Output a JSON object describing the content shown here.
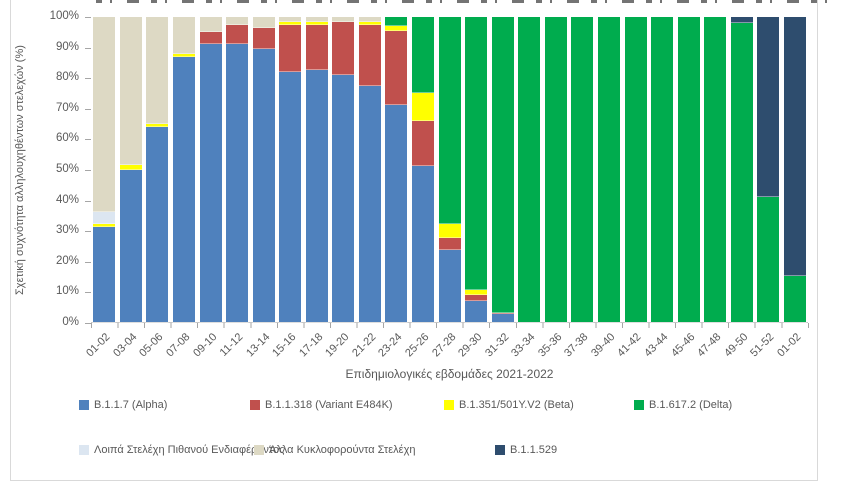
{
  "chart_data": {
    "type": "bar",
    "variant": "stacked-100-percent",
    "title": "",
    "xlabel": "Επιδημιολογικές εβδομάδες 2021-2022",
    "ylabel": "Σχετική συχνότητα αλληλουχηθέντων στελεχών (%)",
    "ylim": [
      0,
      100
    ],
    "y_tick_labels": [
      "0%",
      "10%",
      "20%",
      "30%",
      "40%",
      "50%",
      "60%",
      "70%",
      "80%",
      "90%",
      "100%"
    ],
    "grid": false,
    "legend_position": "bottom",
    "categories": [
      "01-02",
      "03-04",
      "05-06",
      "07-08",
      "09-10",
      "11-12",
      "13-14",
      "15-16",
      "17-18",
      "19-20",
      "21-22",
      "23-24",
      "25-26",
      "27-28",
      "29-30",
      "31-32",
      "33-34",
      "35-36",
      "37-38",
      "39-40",
      "41-42",
      "43-44",
      "45-46",
      "47-48",
      "49-50",
      "51-52",
      "01-02"
    ],
    "series": [
      {
        "name": "B.1.1.7 (Alpha)",
        "color": "#4F81BD",
        "values": [
          31,
          50,
          64,
          87,
          91,
          91,
          89.5,
          82,
          82.5,
          81,
          77.5,
          71,
          51,
          23.5,
          7,
          2.5,
          0,
          0,
          0,
          0,
          0,
          0,
          0,
          0,
          0,
          0,
          0
        ]
      },
      {
        "name": "B.1.1.318 (Variant E484K)",
        "color": "#C0504D",
        "values": [
          0,
          0,
          0,
          0,
          4,
          6.5,
          7,
          15.5,
          15,
          17.5,
          20,
          24.5,
          15,
          4,
          2,
          0.5,
          0,
          0,
          0,
          0,
          0,
          0,
          0,
          0,
          0,
          0,
          0
        ]
      },
      {
        "name": "B.1.351/501Y.V2 (Beta)",
        "color": "#FFFF00",
        "values": [
          1,
          1.5,
          1,
          1,
          0,
          0,
          0,
          1,
          1,
          0,
          1,
          1.5,
          9,
          4.5,
          1.5,
          0,
          0,
          0,
          0,
          0,
          0,
          0,
          0,
          0,
          0,
          0,
          0
        ]
      },
      {
        "name": "B.1.617.2 (Delta)",
        "color": "#00AC4E",
        "values": [
          0,
          0,
          0,
          0,
          0,
          0,
          0,
          0,
          0,
          0,
          0,
          3,
          25,
          68,
          89.5,
          97,
          100,
          100,
          100,
          100,
          100,
          100,
          100,
          100,
          98,
          41,
          15
        ]
      },
      {
        "name": "Λοιπά Στελέχη Πιθανού Ενδιαφέροντος",
        "color": "#DCE6F1",
        "values": [
          4,
          0,
          0,
          0,
          0,
          0,
          0,
          0,
          0,
          0,
          0,
          0,
          0,
          0,
          0,
          0,
          0,
          0,
          0,
          0,
          0,
          0,
          0,
          0,
          0,
          0,
          0
        ]
      },
      {
        "name": "Άλλα Κυκλοφορούντα Στελέχη",
        "color": "#DDD9C4",
        "values": [
          64,
          48.5,
          35,
          12,
          5,
          2.5,
          3.5,
          1.5,
          1.5,
          1.5,
          1.5,
          0,
          0,
          0,
          0,
          0,
          0,
          0,
          0,
          0,
          0,
          0,
          0,
          0,
          0,
          0,
          0
        ]
      },
      {
        "name": "B.1.1.529",
        "color": "#2E4D6E",
        "values": [
          0,
          0,
          0,
          0,
          0,
          0,
          0,
          0,
          0,
          0,
          0,
          0,
          0,
          0,
          0,
          0,
          0,
          0,
          0,
          0,
          0,
          0,
          0,
          0,
          2,
          59,
          85
        ]
      }
    ],
    "legend_rows": [
      [
        0,
        1,
        2,
        3
      ],
      [
        4,
        5,
        6
      ]
    ]
  }
}
